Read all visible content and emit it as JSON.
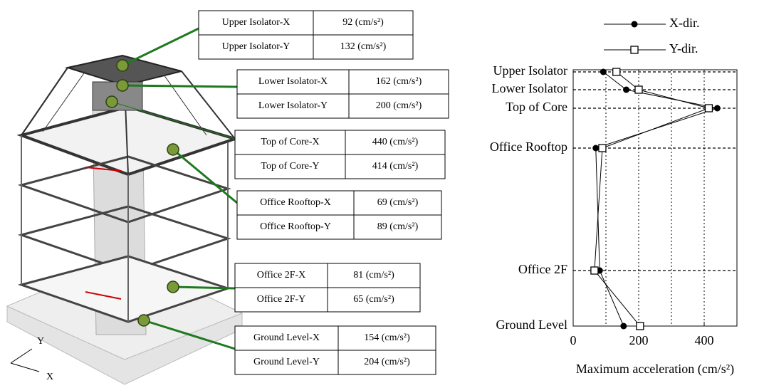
{
  "callouts": [
    {
      "rows": [
        [
          "Upper Isolator-X",
          "92 (cm/s²)"
        ],
        [
          "Upper Isolator-Y",
          "132 (cm/s²)"
        ]
      ]
    },
    {
      "rows": [
        [
          "Lower Isolator-X",
          "162 (cm/s²)"
        ],
        [
          "Lower Isolator-Y",
          "200 (cm/s²)"
        ]
      ]
    },
    {
      "rows": [
        [
          "Top of Core-X",
          "440 (cm/s²)"
        ],
        [
          "Top of Core-Y",
          "414 (cm/s²)"
        ]
      ]
    },
    {
      "rows": [
        [
          "Office Rooftop-X",
          "69 (cm/s²)"
        ],
        [
          "Office Rooftop-Y",
          "89 (cm/s²)"
        ]
      ]
    },
    {
      "rows": [
        [
          "Office 2F-X",
          "81 (cm/s²)"
        ],
        [
          "Office 2F-Y",
          "65 (cm/s²)"
        ]
      ]
    },
    {
      "rows": [
        [
          "Ground Level-X",
          "154 (cm/s²)"
        ],
        [
          "Ground Level-Y",
          "204 (cm/s²)"
        ]
      ]
    }
  ],
  "axes_labels": [
    "Y",
    "X"
  ],
  "chart_data": {
    "type": "line",
    "categories": [
      "Ground Level",
      "Office 2F",
      "Office Rooftop",
      "Top of Core",
      "Lower Isolator",
      "Upper Isolator"
    ],
    "series": [
      {
        "name": "X-dir.",
        "color": "#000000",
        "marker": "filled-circle",
        "values": [
          154,
          81,
          69,
          440,
          162,
          92
        ]
      },
      {
        "name": "Y-dir.",
        "color": "#000000",
        "marker": "open-square",
        "values": [
          204,
          65,
          89,
          414,
          200,
          132
        ]
      }
    ],
    "xlabel": "Maximum acceleration (cm/s²)",
    "xlim": [
      0,
      500
    ],
    "xticks": [
      0,
      200,
      400
    ],
    "minor_xticks": [
      100,
      300,
      500
    ],
    "grid": true,
    "legend": "top"
  }
}
